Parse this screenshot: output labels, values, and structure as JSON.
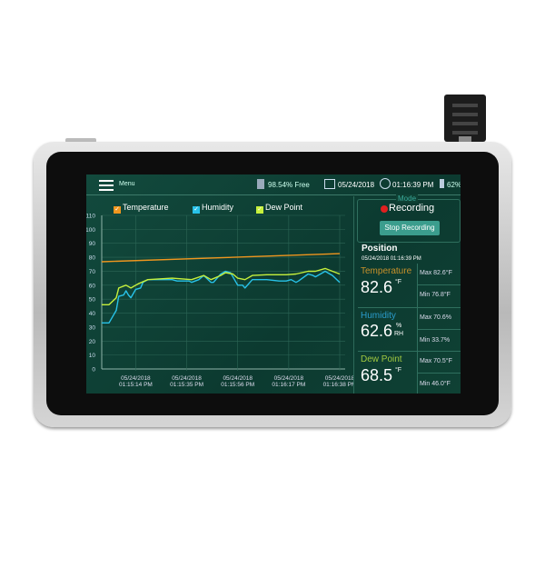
{
  "header": {
    "menu_label": "Menu",
    "storage": "98.54% Free",
    "date": "05/24/2018",
    "time": "01:16:39 PM",
    "battery": "62%"
  },
  "legend": [
    {
      "label": "Temperature",
      "color": "#f0961e"
    },
    {
      "label": "Humidity",
      "color": "#28c2e8"
    },
    {
      "label": "Dew Point",
      "color": "#c6f03c"
    }
  ],
  "panel": {
    "mode_label": "Mode",
    "status": "Recording",
    "stop_button": "Stop Recording",
    "position_label": "Position",
    "position_time": "05/24/2018  01:16:39 PM",
    "readings": [
      {
        "label": "Temperature",
        "value": "82.6",
        "unit": "°F",
        "unit2": "",
        "max": "Max 82.6°F",
        "min": "Min 76.8°F",
        "color": "#c8912a"
      },
      {
        "label": "Humidity",
        "value": "62.6",
        "unit": "%",
        "unit2": "RH",
        "max": "Max 70.6%",
        "min": "Min 33.7%",
        "color": "#2a9ccc"
      },
      {
        "label": "Dew Point",
        "value": "68.5",
        "unit": "°F",
        "unit2": "",
        "max": "Max 70.5°F",
        "min": "Min 46.0°F",
        "color": "#a0c840"
      }
    ]
  },
  "chart_data": {
    "type": "line",
    "grid": true,
    "ylim": [
      0,
      110
    ],
    "xlim": [
      "01:15:00",
      "01:16:38"
    ],
    "yticks": [
      "0",
      "10",
      "20",
      "30",
      "40",
      "50",
      "60",
      "70",
      "80",
      "90",
      "100",
      "110"
    ],
    "xticks": [
      {
        "date": "05/24/2018",
        "time": "01:15:14 PM",
        "t": "01:15:14"
      },
      {
        "date": "05/24/2018",
        "time": "01:15:35 PM",
        "t": "01:15:35"
      },
      {
        "date": "05/24/2018",
        "time": "01:15:56 PM",
        "t": "01:15:56"
      },
      {
        "date": "05/24/2018",
        "time": "01:16:17 PM",
        "t": "01:16:17"
      },
      {
        "date": "05/24/2018",
        "time": "01:16:38 PM",
        "t": "01:16:38"
      }
    ],
    "series": [
      {
        "name": "Temperature",
        "color": "#f0961e",
        "x": [
          "01:15:00",
          "01:16:38"
        ],
        "y": [
          76.8,
          82.6
        ]
      },
      {
        "name": "Humidity",
        "color": "#28c2e8",
        "x": [
          "01:15:00",
          "01:15:03",
          "01:15:06",
          "01:15:07",
          "01:15:09",
          "01:15:10",
          "01:15:11",
          "01:15:12",
          "01:15:14",
          "01:15:16",
          "01:15:17",
          "01:15:19",
          "01:15:24",
          "01:15:29",
          "01:15:31",
          "01:15:36",
          "01:15:37",
          "01:15:40",
          "01:15:42",
          "01:15:45",
          "01:15:46",
          "01:15:49",
          "01:15:51",
          "01:15:53",
          "01:15:56",
          "01:15:58",
          "01:15:59",
          "01:16:02",
          "01:16:08",
          "01:16:13",
          "01:16:16",
          "01:16:18",
          "01:16:20",
          "01:16:21",
          "01:16:25",
          "01:16:27",
          "01:16:28",
          "01:16:32",
          "01:16:35",
          "01:16:38"
        ],
        "y": [
          33,
          33,
          42,
          52,
          53,
          56,
          53,
          51,
          57,
          58,
          62,
          64,
          64,
          64,
          63,
          63,
          62,
          64,
          67,
          62,
          62,
          68,
          70,
          69,
          60,
          60,
          58,
          64,
          64,
          63,
          63,
          64,
          62,
          63,
          68,
          67,
          66,
          70,
          67,
          62
        ]
      },
      {
        "name": "Dew Point",
        "color": "#c6f03c",
        "x": [
          "01:15:00",
          "01:15:03",
          "01:15:06",
          "01:15:07",
          "01:15:10",
          "01:15:12",
          "01:15:15",
          "01:15:19",
          "01:15:29",
          "01:15:37",
          "01:15:42",
          "01:15:45",
          "01:15:49",
          "01:15:51",
          "01:15:54",
          "01:15:56",
          "01:15:59",
          "01:16:02",
          "01:16:08",
          "01:16:16",
          "01:16:20",
          "01:16:25",
          "01:16:28",
          "01:16:32",
          "01:16:35",
          "01:16:38"
        ],
        "y": [
          46,
          46,
          51,
          58,
          60,
          58,
          61,
          64,
          65,
          64,
          67,
          64,
          67,
          69,
          68,
          65,
          64,
          67,
          67.5,
          67.5,
          68,
          70,
          70,
          72,
          70,
          68
        ]
      }
    ]
  }
}
